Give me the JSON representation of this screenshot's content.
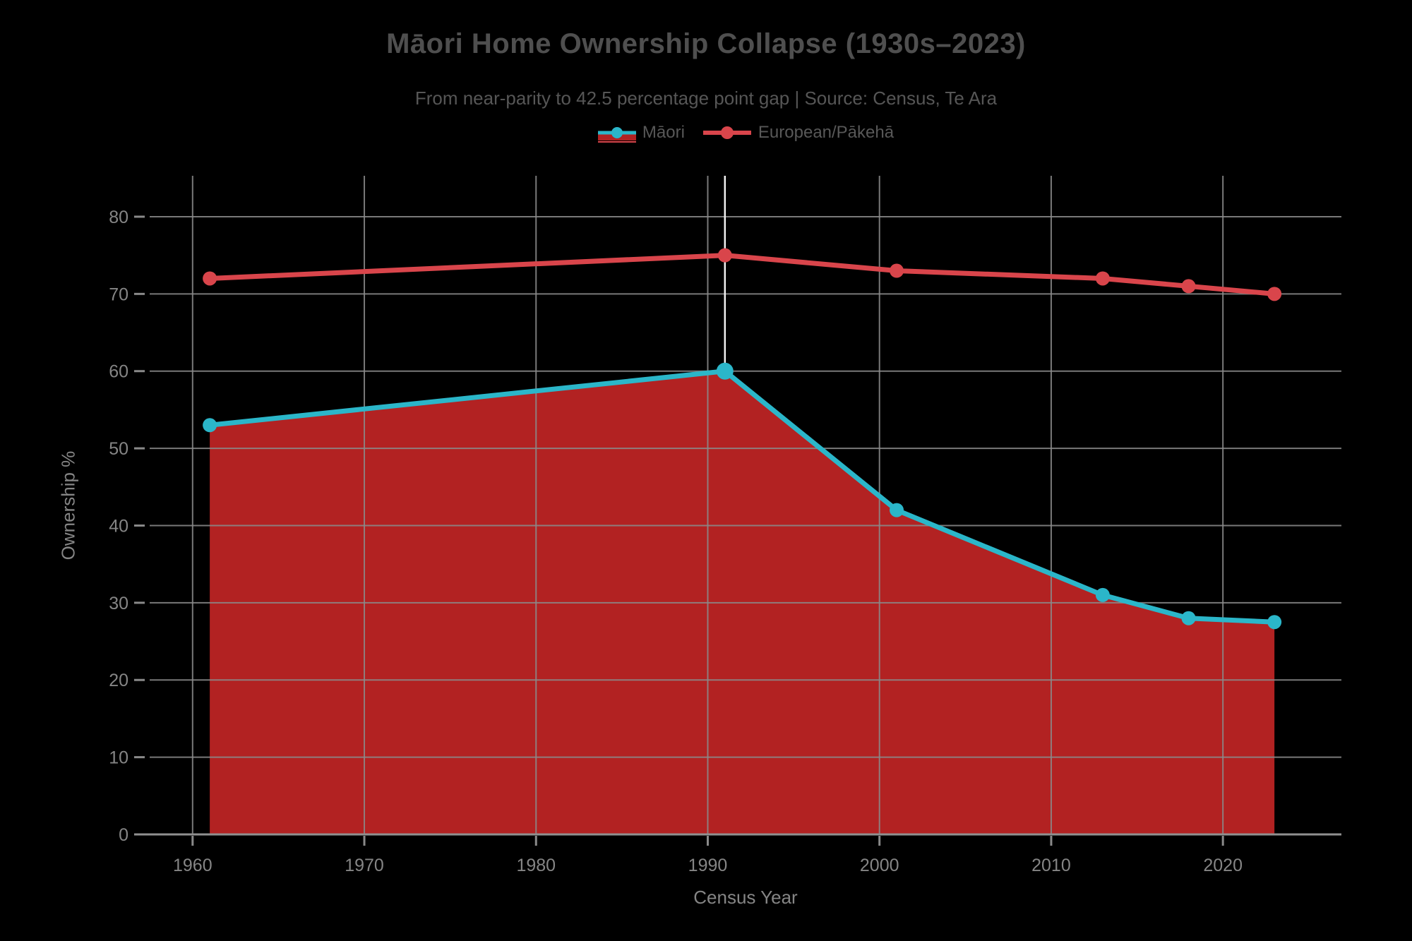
{
  "title": "Māori Home Ownership Collapse (1930s–2023)",
  "subtitle": "From near-parity to 42.5 percentage point gap | Source: Census, Te Ara",
  "legend": [
    {
      "label": "Māori",
      "swatch": "area"
    },
    {
      "label": "European/Pākehā",
      "swatch": "line"
    }
  ],
  "colors": {
    "background": "#000000",
    "maori_line": "#2bb6c9",
    "maori_fill": "#b22222",
    "european_line": "#d9454b",
    "grid": "#8a8a8a",
    "axis_line": "#909090",
    "spike": "#f0f0f0",
    "title_text": "#4f4f4f",
    "subtitle_text": "#565656",
    "tick_text": "#858585"
  },
  "chart_data": {
    "type": "area",
    "title": "Māori Home Ownership Collapse (1930s–2023)",
    "x": [
      1961,
      1991,
      2001,
      2013,
      2018,
      2023
    ],
    "series": [
      {
        "name": "Māori",
        "values": [
          53,
          60,
          42,
          31,
          28,
          27.5
        ],
        "color": "#2bb6c9",
        "fill": "#b22222"
      },
      {
        "name": "European/Pākehā",
        "values": [
          72,
          75,
          73,
          72,
          71,
          70
        ],
        "color": "#d9454b",
        "fill": null
      }
    ],
    "xlabel": "Census Year",
    "ylabel": "Ownership %",
    "x_ticks": [
      1960,
      1970,
      1980,
      1990,
      2000,
      2010,
      2020
    ],
    "y_ticks": [
      0,
      10,
      20,
      30,
      40,
      50,
      60,
      70,
      80
    ],
    "xlim": [
      1957.5,
      2026.9
    ],
    "ylim": [
      0,
      85.3
    ],
    "grid": true,
    "legend_position": "top-center",
    "hover_spike": {
      "x": 1991,
      "y_to": 60
    }
  }
}
